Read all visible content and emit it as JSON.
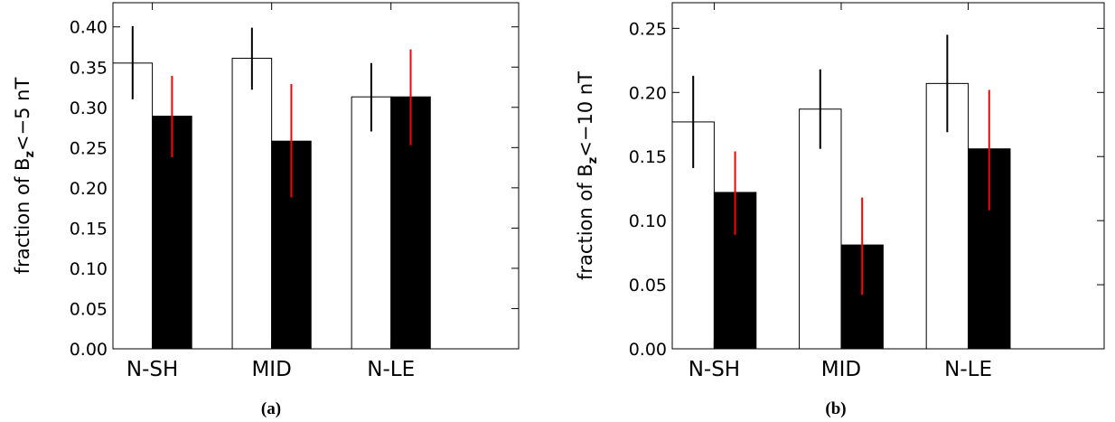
{
  "chart_data": [
    {
      "type": "bar",
      "panel_label": "(a)",
      "ylabel_prefix": "fraction of B",
      "ylabel_sub": "z",
      "ylabel_suffix": "<−5 nT",
      "categories": [
        "N-SH",
        "MID",
        "N-LE"
      ],
      "ylim": [
        0,
        0.43
      ],
      "yticks": [
        "0.00",
        "0.05",
        "0.10",
        "0.15",
        "0.20",
        "0.25",
        "0.30",
        "0.35",
        "0.40"
      ],
      "series": [
        {
          "fill": "#ffffff",
          "values": [
            0.355,
            0.361,
            0.313
          ],
          "err_low": [
            0.31,
            0.322,
            0.27
          ],
          "err_high": [
            0.401,
            0.399,
            0.355
          ],
          "err_color": "#000000"
        },
        {
          "fill": "#000000",
          "values": [
            0.289,
            0.258,
            0.313
          ],
          "err_low": [
            0.238,
            0.188,
            0.253
          ],
          "err_high": [
            0.339,
            0.329,
            0.372
          ],
          "err_color": "#ff0000"
        }
      ]
    },
    {
      "type": "bar",
      "panel_label": "(b)",
      "ylabel_prefix": "fraction of B",
      "ylabel_sub": "z",
      "ylabel_suffix": "<−10 nT",
      "categories": [
        "N-SH",
        "MID",
        "N-LE"
      ],
      "ylim": [
        0,
        0.27
      ],
      "yticks": [
        "0.00",
        "0.05",
        "0.10",
        "0.15",
        "0.20",
        "0.25"
      ],
      "series": [
        {
          "fill": "#ffffff",
          "values": [
            0.177,
            0.187,
            0.207
          ],
          "err_low": [
            0.141,
            0.156,
            0.169
          ],
          "err_high": [
            0.213,
            0.218,
            0.245
          ],
          "err_color": "#000000"
        },
        {
          "fill": "#000000",
          "values": [
            0.122,
            0.081,
            0.156
          ],
          "err_low": [
            0.089,
            0.042,
            0.108
          ],
          "err_high": [
            0.154,
            0.118,
            0.202
          ],
          "err_color": "#ff0000"
        }
      ]
    }
  ]
}
